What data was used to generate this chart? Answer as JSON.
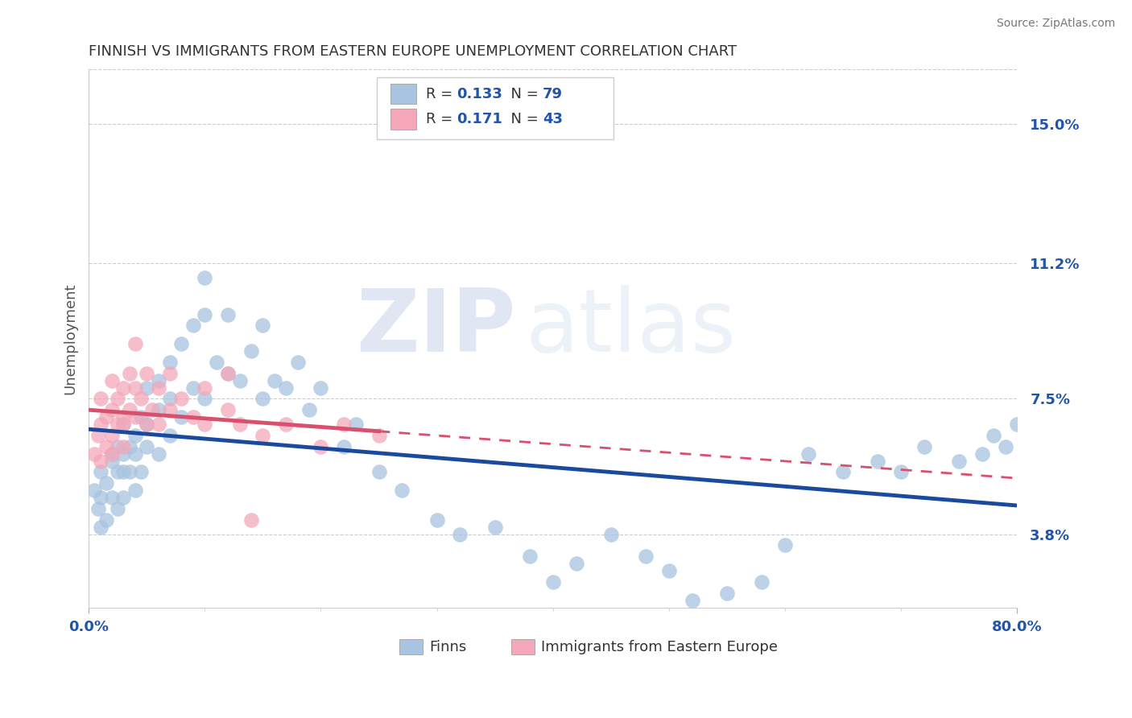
{
  "title": "FINNISH VS IMMIGRANTS FROM EASTERN EUROPE UNEMPLOYMENT CORRELATION CHART",
  "source": "Source: ZipAtlas.com",
  "ylabel": "Unemployment",
  "xlim": [
    0.0,
    0.8
  ],
  "ylim": [
    0.018,
    0.165
  ],
  "ytick_labels": [
    "3.8%",
    "7.5%",
    "11.2%",
    "15.0%"
  ],
  "ytick_values": [
    0.038,
    0.075,
    0.112,
    0.15
  ],
  "xtick_labels": [
    "0.0%",
    "80.0%"
  ],
  "finns_R": 0.133,
  "finns_N": 79,
  "immigrants_R": 0.171,
  "immigrants_N": 43,
  "finns_color": "#a8c4e0",
  "immigrants_color": "#f4a7b9",
  "finns_line_color": "#1a4a9e",
  "immigrants_line_color": "#d94f6e",
  "background_color": "#ffffff",
  "watermark_zip": "ZIP",
  "watermark_atlas": "atlas",
  "finns_x": [
    0.005,
    0.008,
    0.01,
    0.01,
    0.01,
    0.015,
    0.015,
    0.02,
    0.02,
    0.02,
    0.025,
    0.025,
    0.025,
    0.03,
    0.03,
    0.03,
    0.03,
    0.035,
    0.035,
    0.04,
    0.04,
    0.04,
    0.045,
    0.045,
    0.05,
    0.05,
    0.05,
    0.06,
    0.06,
    0.06,
    0.07,
    0.07,
    0.07,
    0.08,
    0.08,
    0.09,
    0.09,
    0.1,
    0.1,
    0.1,
    0.11,
    0.12,
    0.12,
    0.13,
    0.14,
    0.15,
    0.15,
    0.16,
    0.17,
    0.18,
    0.19,
    0.2,
    0.22,
    0.23,
    0.25,
    0.27,
    0.3,
    0.32,
    0.35,
    0.38,
    0.4,
    0.42,
    0.45,
    0.48,
    0.5,
    0.52,
    0.55,
    0.58,
    0.6,
    0.62,
    0.65,
    0.68,
    0.7,
    0.72,
    0.75,
    0.77,
    0.78,
    0.79,
    0.8
  ],
  "finns_y": [
    0.05,
    0.045,
    0.048,
    0.04,
    0.055,
    0.042,
    0.052,
    0.058,
    0.048,
    0.06,
    0.045,
    0.055,
    0.062,
    0.048,
    0.055,
    0.06,
    0.068,
    0.055,
    0.062,
    0.05,
    0.06,
    0.065,
    0.055,
    0.07,
    0.062,
    0.068,
    0.078,
    0.06,
    0.072,
    0.08,
    0.065,
    0.075,
    0.085,
    0.07,
    0.09,
    0.078,
    0.095,
    0.075,
    0.098,
    0.108,
    0.085,
    0.082,
    0.098,
    0.08,
    0.088,
    0.075,
    0.095,
    0.08,
    0.078,
    0.085,
    0.072,
    0.078,
    0.062,
    0.068,
    0.055,
    0.05,
    0.042,
    0.038,
    0.04,
    0.032,
    0.025,
    0.03,
    0.038,
    0.032,
    0.028,
    0.02,
    0.022,
    0.025,
    0.035,
    0.06,
    0.055,
    0.058,
    0.055,
    0.062,
    0.058,
    0.06,
    0.065,
    0.062,
    0.068
  ],
  "immigrants_x": [
    0.005,
    0.008,
    0.01,
    0.01,
    0.01,
    0.015,
    0.015,
    0.02,
    0.02,
    0.02,
    0.02,
    0.025,
    0.025,
    0.03,
    0.03,
    0.03,
    0.03,
    0.035,
    0.035,
    0.04,
    0.04,
    0.04,
    0.045,
    0.05,
    0.05,
    0.055,
    0.06,
    0.06,
    0.07,
    0.07,
    0.08,
    0.09,
    0.1,
    0.1,
    0.12,
    0.12,
    0.13,
    0.14,
    0.15,
    0.17,
    0.2,
    0.22,
    0.25
  ],
  "immigrants_y": [
    0.06,
    0.065,
    0.068,
    0.058,
    0.075,
    0.062,
    0.07,
    0.072,
    0.065,
    0.08,
    0.06,
    0.075,
    0.068,
    0.07,
    0.078,
    0.062,
    0.068,
    0.072,
    0.082,
    0.07,
    0.078,
    0.09,
    0.075,
    0.068,
    0.082,
    0.072,
    0.078,
    0.068,
    0.072,
    0.082,
    0.075,
    0.07,
    0.078,
    0.068,
    0.072,
    0.082,
    0.068,
    0.042,
    0.065,
    0.068,
    0.062,
    0.068,
    0.065
  ]
}
